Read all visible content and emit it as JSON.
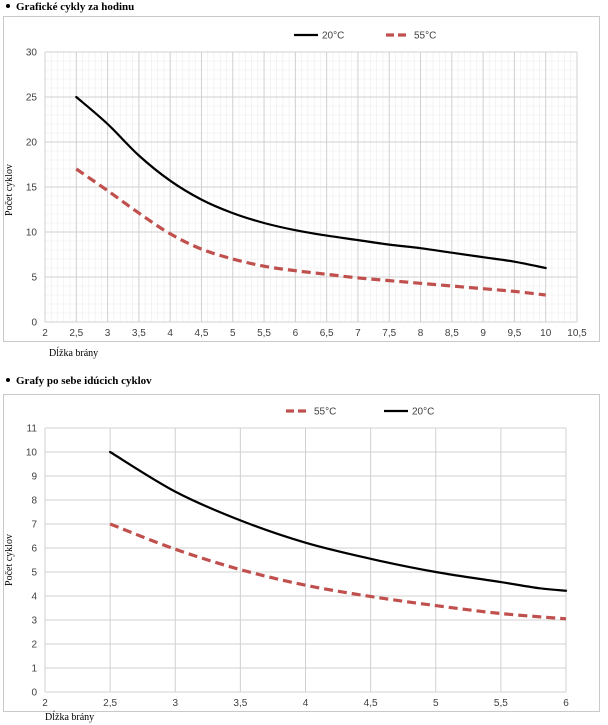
{
  "headings": [
    "Grafické cykly za hodinu",
    "Grafy po sebe idúcich cyklov"
  ],
  "colors": {
    "series_20": "#000000",
    "series_55": "#c0504d",
    "grid_major": "#d0d0d0",
    "grid_minor": "#ececec"
  },
  "chart_data": [
    {
      "type": "line",
      "title": "",
      "xlabel": "Dĺžka brány",
      "ylabel": "Počet cyklov",
      "xlim": [
        2,
        10.5
      ],
      "ylim": [
        0,
        30
      ],
      "xticks": [
        "2",
        "2,5",
        "3",
        "3,5",
        "4",
        "4,5",
        "5",
        "5,5",
        "6",
        "6,5",
        "7",
        "7,5",
        "8",
        "8,5",
        "9",
        "9,5",
        "10",
        "10,5"
      ],
      "yticks": [
        "0",
        "5",
        "10",
        "15",
        "20",
        "25",
        "30"
      ],
      "grid": true,
      "minor_grid": true,
      "legend_position": "top",
      "series": [
        {
          "name": "20°C",
          "style": "solid",
          "x": [
            2.5,
            3,
            3.5,
            4,
            4.5,
            5,
            5.5,
            6,
            6.5,
            7,
            7.5,
            8,
            8.5,
            9,
            9.5,
            10
          ],
          "y": [
            25,
            22,
            18.5,
            15.7,
            13.6,
            12.1,
            11,
            10.2,
            9.6,
            9.1,
            8.6,
            8.2,
            7.7,
            7.2,
            6.7,
            6
          ]
        },
        {
          "name": "55°C",
          "style": "dashed",
          "x": [
            2.5,
            3,
            3.5,
            4,
            4.5,
            5,
            5.5,
            6,
            6.5,
            7,
            7.5,
            8,
            8.5,
            9,
            9.5,
            10
          ],
          "y": [
            17,
            14.6,
            12.1,
            9.8,
            8.1,
            7,
            6.2,
            5.7,
            5.3,
            4.9,
            4.6,
            4.3,
            4,
            3.7,
            3.4,
            3
          ]
        }
      ]
    },
    {
      "type": "line",
      "title": "",
      "xlabel": "Dĺžka brány",
      "ylabel": "Počet cyklov",
      "xlim": [
        2,
        6
      ],
      "ylim": [
        0,
        11
      ],
      "xticks": [
        "2",
        "2,5",
        "3",
        "3,5",
        "4",
        "4,5",
        "5",
        "5,5",
        "6"
      ],
      "yticks": [
        "0",
        "1",
        "2",
        "3",
        "4",
        "5",
        "6",
        "7",
        "8",
        "9",
        "10",
        "11"
      ],
      "grid": true,
      "minor_grid": false,
      "legend_position": "top",
      "series": [
        {
          "name": "55°C",
          "style": "dashed",
          "x": [
            2.5,
            3,
            3.5,
            4,
            4.5,
            5,
            5.5,
            6
          ],
          "y": [
            7,
            5.95,
            5.1,
            4.45,
            3.98,
            3.6,
            3.27,
            3.05
          ]
        },
        {
          "name": "20°C",
          "style": "solid",
          "x": [
            2.5,
            3,
            3.5,
            4,
            4.5,
            5,
            5.5,
            5.8,
            6
          ],
          "y": [
            10,
            8.35,
            7.15,
            6.22,
            5.55,
            5,
            4.58,
            4.32,
            4.22
          ]
        }
      ]
    }
  ]
}
